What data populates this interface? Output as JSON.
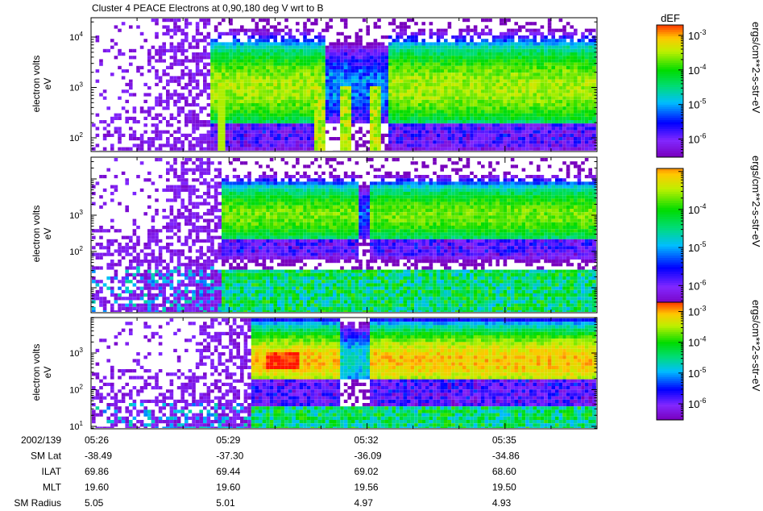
{
  "title": "Cluster 4 PEACE Electrons at 0,90,180 deg V wrt to B",
  "colorbar_header": "dEF",
  "panels": [
    {
      "ylabel_line1": "electron volts",
      "ylabel_line2": "eV",
      "y_ticks": [
        {
          "base": "10",
          "exp": "2",
          "value": 100
        },
        {
          "base": "10",
          "exp": "3",
          "value": 1000
        },
        {
          "base": "10",
          "exp": "4",
          "value": 10000
        }
      ],
      "colorbar_ticks": [
        {
          "base": "10",
          "exp": "-3",
          "value": 0.001
        },
        {
          "base": "10",
          "exp": "-4",
          "value": 0.0001
        },
        {
          "base": "10",
          "exp": "-5",
          "value": 1e-05
        },
        {
          "base": "10",
          "exp": "-6",
          "value": 1e-06
        }
      ],
      "colorbar_range": [
        3e-07,
        0.002
      ],
      "units": "ergs/cm**2-s-str-eV"
    },
    {
      "ylabel_line1": "electron volts",
      "ylabel_line2": "eV",
      "y_ticks": [
        {
          "base": "10",
          "exp": "2",
          "value": 100
        },
        {
          "base": "10",
          "exp": "3",
          "value": 1000
        }
      ],
      "colorbar_ticks": [
        {
          "base": "10",
          "exp": "-4",
          "value": 0.0001
        },
        {
          "base": "10",
          "exp": "-5",
          "value": 1e-05
        },
        {
          "base": "10",
          "exp": "-6",
          "value": 1e-06
        }
      ],
      "colorbar_range": [
        3e-07,
        0.0012
      ],
      "units": "ergs/cm**2-s-str-eV"
    },
    {
      "ylabel_line1": "electron volts",
      "ylabel_line2": "eV",
      "y_ticks": [
        {
          "base": "10",
          "exp": "1",
          "value": 10
        },
        {
          "base": "10",
          "exp": "2",
          "value": 100
        },
        {
          "base": "10",
          "exp": "3",
          "value": 1000
        }
      ],
      "colorbar_ticks": [
        {
          "base": "10",
          "exp": "-3",
          "value": 0.001
        },
        {
          "base": "10",
          "exp": "-4",
          "value": 0.0001
        },
        {
          "base": "10",
          "exp": "-5",
          "value": 1e-05
        },
        {
          "base": "10",
          "exp": "-6",
          "value": 1e-06
        }
      ],
      "colorbar_range": [
        3e-07,
        0.002
      ],
      "units": "ergs/cm**2-s-str-eV"
    }
  ],
  "orbit_table": {
    "rows": [
      {
        "label": "2002/139",
        "values": [
          "05:26",
          "05:29",
          "05:32",
          "05:35"
        ]
      },
      {
        "label": "SM Lat",
        "values": [
          "-38.49",
          "-37.30",
          "-36.09",
          "-34.86"
        ]
      },
      {
        "label": "ILAT",
        "values": [
          "69.86",
          "69.44",
          "69.02",
          "68.60"
        ]
      },
      {
        "label": "MLT",
        "values": [
          "19.60",
          "19.60",
          "19.56",
          "19.50"
        ]
      },
      {
        "label": "SM Radius",
        "values": [
          "5.05",
          "5.01",
          "4.97",
          "4.93"
        ]
      }
    ]
  },
  "chart_data": {
    "type": "heatmap",
    "title": "Cluster 4 PEACE Electrons at 0,90,180 deg V wrt to B",
    "x_ticks": [
      "05:26",
      "05:29",
      "05:32",
      "05:35"
    ],
    "x_range_minutes": [
      "05:26",
      "05:37"
    ],
    "ylabel": "electron volts eV",
    "y_scale": "log",
    "ylim_eV": [
      15,
      30000
    ],
    "colorbar_label": "dEF",
    "colorbar_units": "ergs/cm**2-s-str-eV",
    "colormap": "rainbow (purple to red)",
    "panels": [
      {
        "name": "panel-1",
        "description_features": "spread-out low-level counts before onset; onset of plasma sheet at ~05:28.6; broadband bursts near 05:31.0, 05:31.5 and 05:32.2",
        "onset_time": "05:28:36",
        "dropout": [
          "05:31:05",
          "05:32:30"
        ],
        "peak_energy_eV": 1000,
        "peak_dEF": 0.0003
      },
      {
        "name": "panel-2",
        "onset_time": "05:28:48",
        "dropout": [
          "05:31:50",
          "05:32:05"
        ],
        "peak_energy_eV": 1000,
        "peak_dEF": 0.0002
      },
      {
        "name": "panel-3",
        "onset_time": "05:29:30",
        "dropout": [
          "05:31:25",
          "05:32:05"
        ],
        "peak_energy_eV": 600,
        "peak_dEF": 0.0008
      }
    ]
  }
}
